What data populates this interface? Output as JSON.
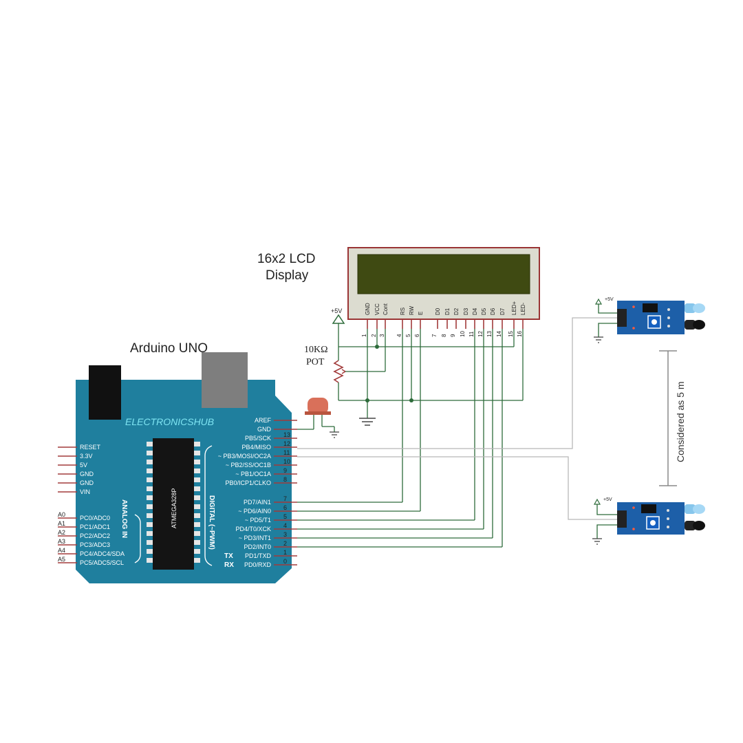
{
  "labels": {
    "lcd_title_line1": "16x2 LCD",
    "lcd_title_line2": "Display",
    "arduino_title": "Arduino UNO",
    "pot_value": "10KΩ",
    "pot_name": "POT",
    "plus5v": "+5V",
    "distance": "Considered as 5 m",
    "board_brand": "ELECTRONICSHUB",
    "chip_name": "ATMEGA328P",
    "analog_label": "ANALOG IN",
    "digital_label": "DIGITAL (~PWM)",
    "tx": "TX",
    "rx": "RX"
  },
  "lcd_pins": [
    {
      "name": "GND",
      "num": "1"
    },
    {
      "name": "VCC",
      "num": "2"
    },
    {
      "name": "Cont",
      "num": "3"
    },
    {
      "name": "RS",
      "num": "4"
    },
    {
      "name": "RW",
      "num": "5"
    },
    {
      "name": "E",
      "num": "6"
    },
    {
      "name": "D0",
      "num": "7"
    },
    {
      "name": "D1",
      "num": "8"
    },
    {
      "name": "D2",
      "num": "9"
    },
    {
      "name": "D3",
      "num": "10"
    },
    {
      "name": "D4",
      "num": "11"
    },
    {
      "name": "D5",
      "num": "12"
    },
    {
      "name": "D6",
      "num": "13"
    },
    {
      "name": "D7",
      "num": "14"
    },
    {
      "name": "LED+",
      "num": "15"
    },
    {
      "name": "LED-",
      "num": "16"
    }
  ],
  "left_pins": [
    "RESET",
    "3.3V",
    "5V",
    "GND",
    "GND",
    "VIN"
  ],
  "analog_pins": [
    {
      "a": "A0",
      "name": "PC0/ADC0"
    },
    {
      "a": "A1",
      "name": "PC1/ADC1"
    },
    {
      "a": "A2",
      "name": "PC2/ADC2"
    },
    {
      "a": "A3",
      "name": "PC3/ADC3"
    },
    {
      "a": "A4",
      "name": "PC4/ADC4/SDA"
    },
    {
      "a": "A5",
      "name": "PC5/ADC5/SCL"
    }
  ],
  "right_pins_top": [
    {
      "name": "AREF",
      "num": ""
    },
    {
      "name": "GND",
      "num": ""
    },
    {
      "name": "PB5/SCK",
      "num": "13"
    },
    {
      "name": "PB4/MISO",
      "num": "12"
    },
    {
      "name": "~ PB3/MOSI/OC2A",
      "num": "11"
    },
    {
      "name": "~ PB2/SS/OC1B",
      "num": "10"
    },
    {
      "name": "~ PB1/OC1A",
      "num": "9"
    },
    {
      "name": "PB0/ICP1/CLKO",
      "num": "8"
    }
  ],
  "right_pins_bottom": [
    {
      "name": "PD7/AIN1",
      "num": "7"
    },
    {
      "name": "~ PD6/AIN0",
      "num": "6"
    },
    {
      "name": "~ PD5/T1",
      "num": "5"
    },
    {
      "name": "PD4/T0/XCK",
      "num": "4"
    },
    {
      "name": "~ PD3/INT1",
      "num": "3"
    },
    {
      "name": "PD2/INT0",
      "num": "2"
    },
    {
      "name": "PD1/TXD",
      "num": "1"
    },
    {
      "name": "PD0/RXD",
      "num": "0"
    }
  ],
  "sensors": [
    {
      "vcc_label": "+5V"
    },
    {
      "vcc_label": "+5V"
    }
  ],
  "colors": {
    "board": "#1f7f9e",
    "lcd_screen": "#3f4a12",
    "wire": "#2d6b3a",
    "sensor": "#1d5fa8"
  }
}
